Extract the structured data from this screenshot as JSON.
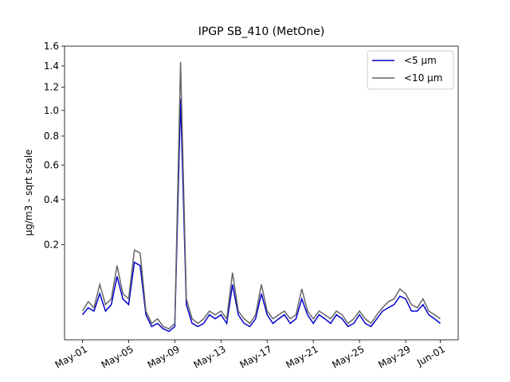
{
  "chart_data": {
    "type": "line",
    "title": "IPGP SB_410 (MetOne)",
    "ylabel": "µg/m3 - sqrt scale",
    "yscale": "sqrt",
    "x": [
      1,
      1.5,
      2,
      2.5,
      3,
      3.5,
      4,
      4.5,
      5,
      5.5,
      6,
      6.5,
      7,
      7.5,
      8,
      8.5,
      9,
      9.5,
      10,
      10.5,
      11,
      11.5,
      12,
      12.5,
      13,
      13.5,
      14,
      14.5,
      15,
      15.5,
      16,
      16.5,
      17,
      17.5,
      18,
      18.5,
      19,
      19.5,
      20,
      20.5,
      21,
      21.5,
      22,
      22.5,
      23,
      23.5,
      24,
      24.5,
      25,
      25.5,
      26,
      26.5,
      27,
      27.5,
      28,
      28.5,
      29,
      29.5,
      30,
      30.5,
      31,
      31.5,
      32
    ],
    "series": [
      {
        "name": "<5 µm",
        "color": "#0000cc",
        "values": [
          0.025,
          0.035,
          0.03,
          0.06,
          0.03,
          0.04,
          0.1,
          0.05,
          0.04,
          0.14,
          0.13,
          0.025,
          0.012,
          0.015,
          0.01,
          0.008,
          0.012,
          1.1,
          0.04,
          0.015,
          0.012,
          0.015,
          0.025,
          0.02,
          0.025,
          0.015,
          0.08,
          0.025,
          0.015,
          0.012,
          0.02,
          0.06,
          0.025,
          0.015,
          0.02,
          0.025,
          0.015,
          0.02,
          0.05,
          0.025,
          0.015,
          0.025,
          0.02,
          0.015,
          0.025,
          0.02,
          0.012,
          0.015,
          0.025,
          0.015,
          0.012,
          0.02,
          0.03,
          0.035,
          0.04,
          0.055,
          0.05,
          0.03,
          0.03,
          0.04,
          0.025,
          0.02,
          0.015
        ]
      },
      {
        "name": "<10 µm",
        "color": "#666666",
        "values": [
          0.03,
          0.045,
          0.035,
          0.08,
          0.04,
          0.05,
          0.13,
          0.06,
          0.05,
          0.18,
          0.17,
          0.03,
          0.015,
          0.02,
          0.012,
          0.01,
          0.015,
          1.44,
          0.05,
          0.02,
          0.015,
          0.02,
          0.03,
          0.025,
          0.03,
          0.02,
          0.11,
          0.03,
          0.02,
          0.015,
          0.025,
          0.08,
          0.03,
          0.02,
          0.025,
          0.03,
          0.02,
          0.025,
          0.07,
          0.03,
          0.02,
          0.03,
          0.025,
          0.02,
          0.03,
          0.025,
          0.015,
          0.02,
          0.03,
          0.02,
          0.015,
          0.025,
          0.035,
          0.045,
          0.05,
          0.07,
          0.06,
          0.04,
          0.035,
          0.05,
          0.03,
          0.025,
          0.02
        ]
      }
    ],
    "xlim": [
      -0.55,
      33.55
    ],
    "xticks": [
      {
        "value": 1,
        "label": "May-01"
      },
      {
        "value": 5,
        "label": "May-05"
      },
      {
        "value": 9,
        "label": "May-09"
      },
      {
        "value": 13,
        "label": "May-13"
      },
      {
        "value": 17,
        "label": "May-17"
      },
      {
        "value": 21,
        "label": "May-21"
      },
      {
        "value": 25,
        "label": "May-25"
      },
      {
        "value": 29,
        "label": "May-29"
      },
      {
        "value": 32,
        "label": "Jun-01"
      }
    ],
    "ylim": [
      0.003,
      1.6
    ],
    "yticks": [
      0.2,
      0.4,
      0.6,
      0.8,
      {
        "value": 1,
        "label": "1.0"
      },
      1.2,
      1.4,
      1.6
    ],
    "legend": "upper right"
  }
}
